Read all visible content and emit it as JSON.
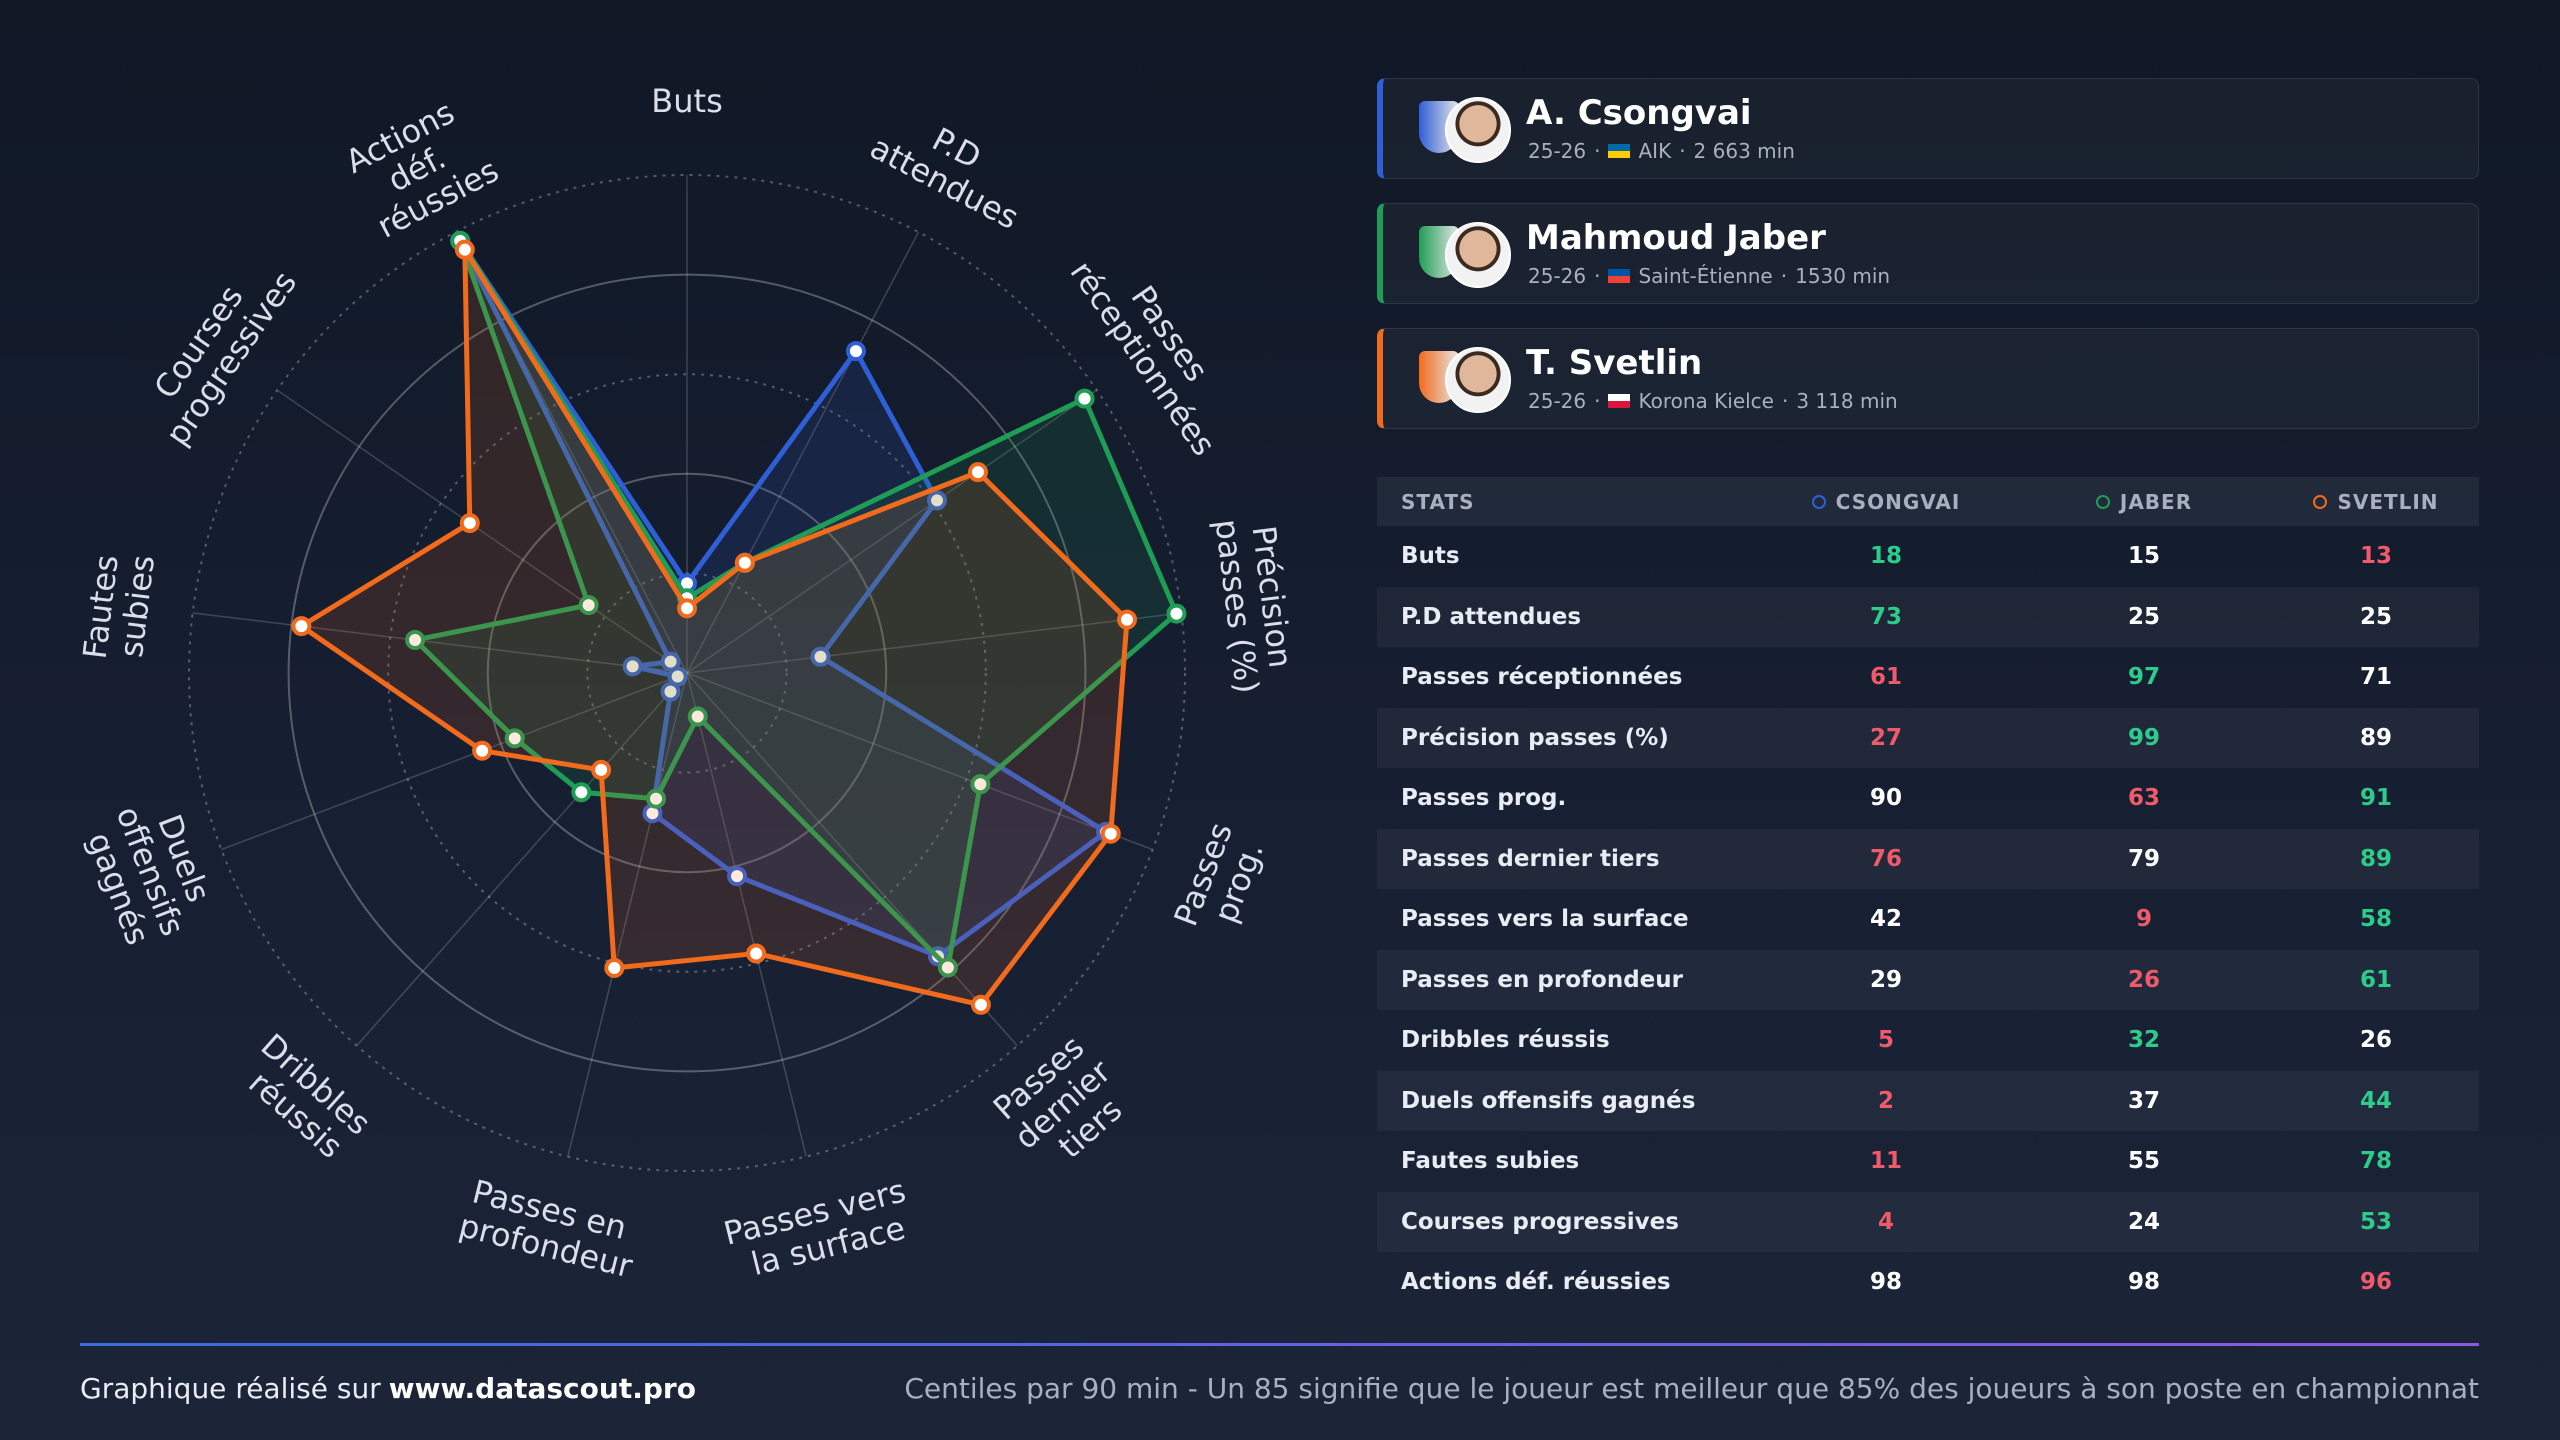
{
  "chart_data": {
    "type": "radar",
    "categories": [
      "Buts",
      "P.D attendues",
      "Passes réceptionnées",
      "Précision passes (%)",
      "Passes prog.",
      "Passes dernier tiers",
      "Passes vers la surface",
      "Passes en profondeur",
      "Dribbles réussis",
      "Duels offensifs gagnés",
      "Fautes subies",
      "Courses progressives",
      "Actions déf. réussies"
    ],
    "series": [
      {
        "name": "CSONGVAI",
        "color": "#2f5fd6",
        "values": [
          18,
          73,
          61,
          27,
          90,
          76,
          42,
          29,
          5,
          2,
          11,
          4,
          98
        ]
      },
      {
        "name": "JABER",
        "color": "#1f9d55",
        "values": [
          15,
          25,
          97,
          99,
          63,
          79,
          9,
          26,
          32,
          37,
          55,
          24,
          98
        ]
      },
      {
        "name": "SVETLIN",
        "color": "#f26b1d",
        "values": [
          13,
          25,
          71,
          89,
          91,
          89,
          58,
          61,
          26,
          44,
          78,
          53,
          96
        ]
      }
    ],
    "ylim": [
      0,
      100
    ],
    "yticks": [
      20,
      40,
      60,
      80,
      100
    ],
    "grid": true
  },
  "players": [
    {
      "name": "A. Csongvai",
      "season": "25-26",
      "club": "AIK",
      "minutes": "2 663 min"
    },
    {
      "name": "Mahmoud Jaber",
      "season": "25-26",
      "club": "Saint-Étienne",
      "minutes": "1530 min"
    },
    {
      "name": "T. Svetlin",
      "season": "25-26",
      "club": "Korona Kielce",
      "minutes": "3 118 min"
    }
  ],
  "table": {
    "header": "STATS"
  },
  "footer": {
    "credit": "Graphique réalisé sur",
    "site": "www.datascout.pro",
    "note": "Centiles par 90 min - Un 85 signifie que le joueur est meilleur que 85% des joueurs à son poste en championnat"
  }
}
